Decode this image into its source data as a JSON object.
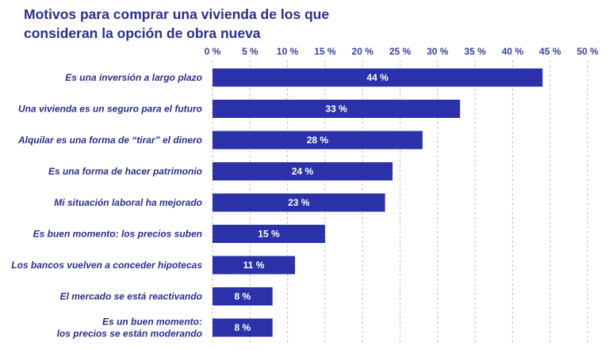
{
  "colors": {
    "bar": "#2b31a8",
    "grid": "#b9bce6",
    "title": "#2a2f8f",
    "text": "#2a2f8f"
  },
  "chart_data": {
    "type": "bar",
    "orientation": "horizontal",
    "title_lines": [
      "Motivos para comprar una vivienda de los que",
      "consideran la opción de obra nueva"
    ],
    "xlim": [
      0,
      50
    ],
    "ticks": [
      0,
      5,
      10,
      15,
      20,
      25,
      30,
      35,
      40,
      45,
      50
    ],
    "tick_labels": [
      "0 %",
      "5 %",
      "10 %",
      "15 %",
      "20 %",
      "25 %",
      "30 %",
      "35 %",
      "40 %",
      "45 %",
      "50 %"
    ],
    "grid": true,
    "categories": [
      [
        "Es una inversión a largo plazo"
      ],
      [
        "Una vivienda es un seguro para el futuro"
      ],
      [
        "Alquilar es una forma de “tirar” el dinero"
      ],
      [
        "Es una forma de hacer patrimonio"
      ],
      [
        "Mi situación laboral ha mejorado"
      ],
      [
        "Es buen momento: los precios suben"
      ],
      [
        "Los bancos vuelven a conceder hipotecas"
      ],
      [
        "El mercado se está reactivando"
      ],
      [
        "Es un buen momento:",
        "los precios se están moderando"
      ]
    ],
    "values": [
      44,
      33,
      28,
      24,
      23,
      15,
      11,
      8,
      8
    ],
    "value_labels": [
      "44 %",
      "33 %",
      "28 %",
      "24 %",
      "23 %",
      "15 %",
      "11 %",
      "8 %",
      "8 %"
    ]
  }
}
